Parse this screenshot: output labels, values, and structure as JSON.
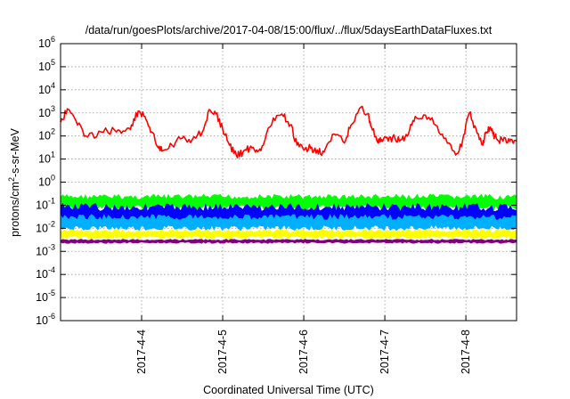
{
  "chart_data": {
    "type": "line",
    "title": "/data/run/goesPlots/archive/2017-04-08/15:00/flux/../flux/5daysEarthDataFluxes.txt",
    "xlabel": "Coordinated Universal Time (UTC)",
    "ylabel_base": "protons/cm",
    "ylabel_sup": "2",
    "ylabel_rest": "-s-sr-MeV",
    "y_scale": "log",
    "ylim": [
      1e-06,
      1000000.0
    ],
    "xlim": [
      "2017-04-03 00:00",
      "2017-04-08 15:00"
    ],
    "grid": true,
    "x_ticks": [
      "2017-4-4",
      "2017-4-5",
      "2017-4-6",
      "2017-4-7",
      "2017-4-8"
    ],
    "y_ticks": [
      {
        "base": "10",
        "exp": "-6"
      },
      {
        "base": "10",
        "exp": "-5"
      },
      {
        "base": "10",
        "exp": "-4"
      },
      {
        "base": "10",
        "exp": "-3"
      },
      {
        "base": "10",
        "exp": "-2"
      },
      {
        "base": "10",
        "exp": "-1"
      },
      {
        "base": "10",
        "exp": "0"
      },
      {
        "base": "10",
        "exp": "1"
      },
      {
        "base": "10",
        "exp": "2"
      },
      {
        "base": "10",
        "exp": "3"
      },
      {
        "base": "10",
        "exp": "4"
      },
      {
        "base": "10",
        "exp": "5"
      },
      {
        "base": "10",
        "exp": "6"
      }
    ],
    "series": [
      {
        "color": "#ff0000",
        "style": "line",
        "x": [
          "2017-04-03 00:00",
          "2017-04-03 02:00",
          "2017-04-03 05:00",
          "2017-04-03 08:00",
          "2017-04-03 12:00",
          "2017-04-03 16:00",
          "2017-04-03 19:00",
          "2017-04-03 21:00",
          "2017-04-03 23:00",
          "2017-04-04 01:00",
          "2017-04-04 03:00",
          "2017-04-04 05:00",
          "2017-04-04 06:00",
          "2017-04-04 09:00",
          "2017-04-04 12:00",
          "2017-04-04 15:00",
          "2017-04-04 18:00",
          "2017-04-04 20:00",
          "2017-04-04 22:00",
          "2017-04-05 00:00",
          "2017-04-05 02:00",
          "2017-04-05 04:00",
          "2017-04-05 06:00",
          "2017-04-05 08:00",
          "2017-04-05 10:00",
          "2017-04-05 12:00",
          "2017-04-05 15:00",
          "2017-04-05 18:00",
          "2017-04-05 20:00",
          "2017-04-05 22:00",
          "2017-04-06 00:00",
          "2017-04-06 02:00",
          "2017-04-06 04:00",
          "2017-04-06 06:00",
          "2017-04-06 09:00",
          "2017-04-06 12:00",
          "2017-04-06 14:00",
          "2017-04-06 17:00",
          "2017-04-06 19:00",
          "2017-04-06 20:00",
          "2017-04-06 22:00",
          "2017-04-06 23:00",
          "2017-04-07 01:00",
          "2017-04-07 03:00",
          "2017-04-07 05:00",
          "2017-04-07 07:00",
          "2017-04-07 09:00",
          "2017-04-07 12:00",
          "2017-04-07 15:00",
          "2017-04-07 18:00",
          "2017-04-07 21:00",
          "2017-04-07 23:00",
          "2017-04-08 01:00",
          "2017-04-08 03:00",
          "2017-04-08 05:00",
          "2017-04-08 06:00",
          "2017-04-08 07:00",
          "2017-04-08 08:00",
          "2017-04-08 09:00",
          "2017-04-08 11:00",
          "2017-04-08 13:00",
          "2017-04-08 15:00"
        ],
        "y": [
          400,
          1500,
          300,
          90,
          150,
          180,
          160,
          300,
          1200,
          700,
          150,
          30,
          22,
          40,
          80,
          70,
          150,
          1400,
          900,
          200,
          40,
          15,
          20,
          30,
          25,
          40,
          600,
          700,
          300,
          40,
          25,
          30,
          25,
          20,
          120,
          50,
          300,
          1800,
          900,
          250,
          50,
          70,
          60,
          80,
          70,
          120,
          700,
          800,
          300,
          80,
          15,
          60,
          1000,
          200,
          40,
          150,
          200,
          120,
          80,
          60,
          60,
          60
        ]
      },
      {
        "color": "#00ff00",
        "style": "band",
        "band": [
          0.06,
          0.3
        ]
      },
      {
        "color": "#0000ff",
        "style": "band",
        "band": [
          0.012,
          0.12
        ]
      },
      {
        "color": "#00b0ff",
        "style": "band",
        "band": [
          0.008,
          0.04
        ]
      },
      {
        "color": "#ffff00",
        "style": "band",
        "band": [
          0.0035,
          0.009
        ]
      },
      {
        "color": "#800080",
        "style": "band",
        "band": [
          0.0022,
          0.0034
        ]
      }
    ]
  }
}
